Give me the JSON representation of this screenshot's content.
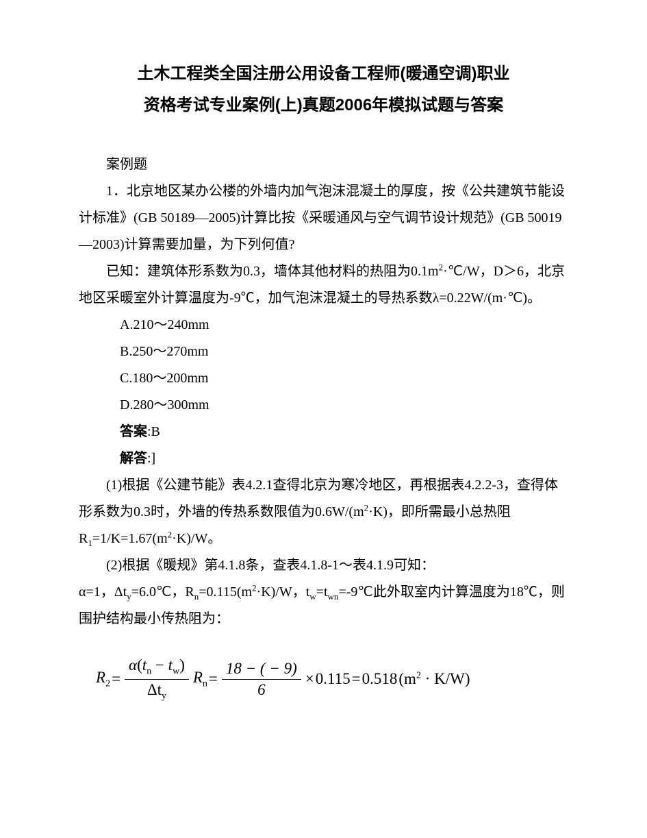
{
  "title_line1": "土木工程类全国注册公用设备工程师(暖通空调)职业",
  "title_line2": "资格考试专业案例(上)真题2006年模拟试题与答案",
  "section_label": "案例题",
  "q1_p1": "1．北京地区某办公楼的外墙内加气泡沫混凝土的厚度，按《公共建筑节能设计标准》(GB 50189—2005)计算比按《采暖通风与空气调节设计规范》(GB 50019—2003)计算需要加量，为下列何值?",
  "q1_p2_prefix": "已知：建筑体形系数为0.3，墙体其他材料的热阻为0.1m",
  "q1_p2_suffix": "·℃/W，D＞6，北京地区采暖室外计算温度为-9℃，加气泡沫混凝土的导热系数λ=0.22W/(m·℃)。",
  "opt_a": "A.210～240mm",
  "opt_b": "B.250～270mm",
  "opt_c": "C.180～200mm",
  "opt_d": "D.280～300mm",
  "answer_label": "答案",
  "answer_value": ":B",
  "explain_label": "解答",
  "explain_suffix": ":]",
  "exp_p1_prefix": "(1)根据《公建节能》表4.2.1查得北京为寒冷地区，再根据表4.2.2-3，查得体形系数为0.3时，外墙的传热系数限值为0.6W/(m",
  "exp_p1_mid": "·K)，即所需最小总热阻R",
  "exp_p1_suffix": "=1/K=1.67(m",
  "exp_p1_end": "·K)/W。",
  "exp_p2_line1": "(2)根据《暖规》第4.1.8条，查表4.1.8-1～表4.1.9可知：",
  "exp_p2_line2_a": "α=1，Δt",
  "exp_p2_line2_b": "=6.0℃，R",
  "exp_p2_line2_c": "=0.115(m",
  "exp_p2_line2_d": "·K)/W，t",
  "exp_p2_line2_e": "=t",
  "exp_p2_line2_f": "=-9℃此外取室内计算温度为18℃，则围护结构最小传热阻为：",
  "formula": {
    "R2": "R",
    "R2_sub": "2",
    "eq": " = ",
    "alpha": "α",
    "lparen": "(",
    "tn": "t",
    "tn_sub": "n",
    "minus": " − ",
    "tw": "t",
    "tw_sub": "w",
    "rparen": ")",
    "dty": "Δt",
    "dty_sub": "y",
    "Rn": "R",
    "Rn_sub": "n",
    "num2": "18 − ( − 9)",
    "den2": "6",
    "times": " × ",
    "val": "0.115",
    "eq2": " = ",
    "result": "0.518",
    "unit_l": "(m",
    "unit_sup": "2",
    "unit_r": " · K/W)"
  }
}
